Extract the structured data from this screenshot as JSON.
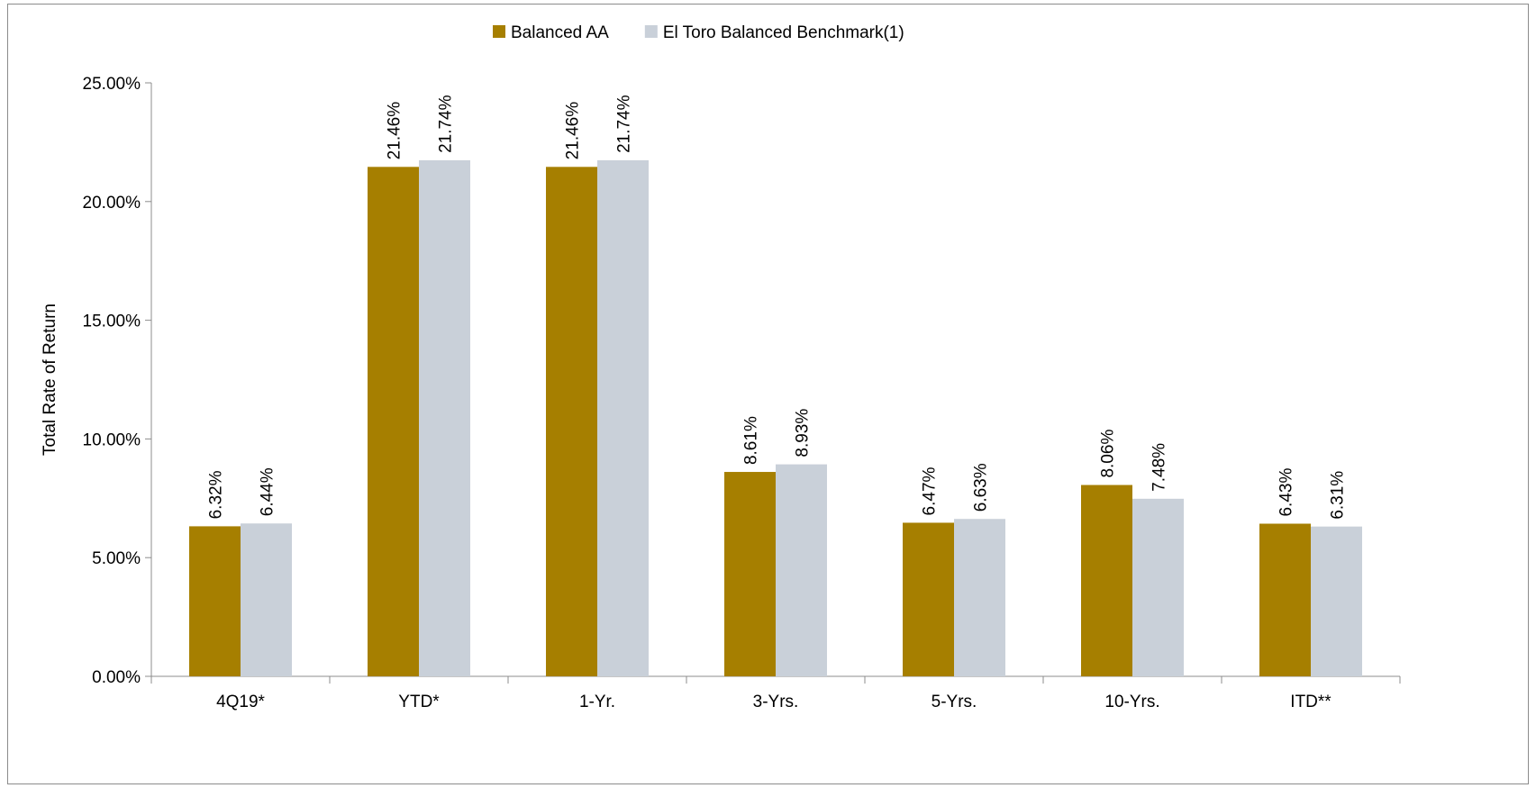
{
  "chart_data": {
    "type": "bar",
    "title": "",
    "xlabel": "",
    "ylabel": "Total Rate of Return",
    "ylim": [
      0,
      25
    ],
    "y_ticks": [
      "0.00%",
      "5.00%",
      "10.00%",
      "15.00%",
      "20.00%",
      "25.00%"
    ],
    "y_tick_values": [
      0,
      5,
      10,
      15,
      20,
      25
    ],
    "grid": false,
    "legend_position": "top-center",
    "categories": [
      "4Q19*",
      "YTD*",
      "1-Yr.",
      "3-Yrs.",
      "5-Yrs.",
      "10-Yrs.",
      "ITD**"
    ],
    "series": [
      {
        "name": "Balanced AA",
        "color": "#A67F00",
        "values": [
          6.32,
          21.46,
          21.46,
          8.61,
          6.47,
          8.06,
          6.43
        ],
        "labels": [
          "6.32%",
          "21.46%",
          "21.46%",
          "8.61%",
          "6.47%",
          "8.06%",
          "6.43%"
        ]
      },
      {
        "name": "El Toro Balanced Benchmark(1)",
        "color": "#C9D0D9",
        "values": [
          6.44,
          21.74,
          21.74,
          8.93,
          6.63,
          7.48,
          6.31
        ],
        "labels": [
          "6.44%",
          "21.74%",
          "21.74%",
          "8.93%",
          "6.63%",
          "7.48%",
          "6.31%"
        ]
      }
    ]
  }
}
